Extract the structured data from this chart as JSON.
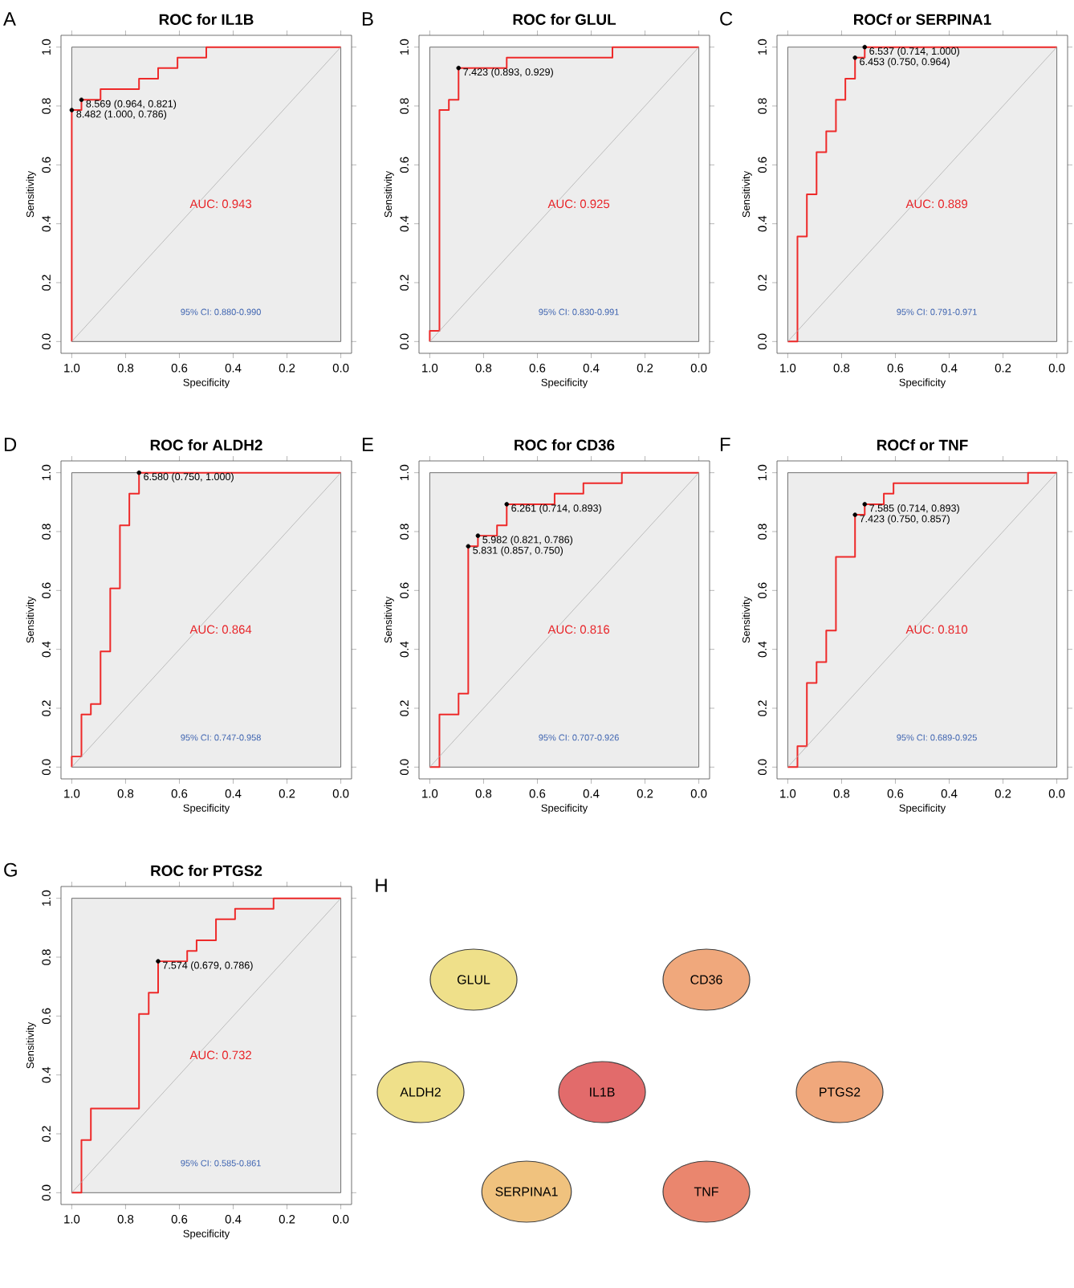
{
  "chart_data": [
    {
      "type": "line",
      "title": "ROC for IL1B",
      "xlabel": "Specificity",
      "ylabel": "Sensitivity",
      "xlim": [
        1.04,
        -0.04
      ],
      "ylim": [
        -0.04,
        1.04
      ],
      "xticks": [
        {
          "value": 1,
          "label": "1.0"
        },
        {
          "value": 0.8,
          "label": "0.8"
        },
        {
          "value": 0.6,
          "label": "0.6"
        },
        {
          "value": 0.4,
          "label": "0.4"
        },
        {
          "value": 0.2,
          "label": "0.2"
        },
        {
          "value": 0,
          "label": "0.0"
        }
      ],
      "yticks": [
        {
          "value": 0,
          "label": "0.0"
        },
        {
          "value": 0.2,
          "label": "0.2"
        },
        {
          "value": 0.4,
          "label": "0.4"
        },
        {
          "value": 0.6,
          "label": "0.6"
        },
        {
          "value": 0.8,
          "label": "0.8"
        },
        {
          "value": 1,
          "label": "1.0"
        }
      ],
      "series": [
        {
          "color": "#ee2a2a",
          "x": [
            1,
            1,
            0.964,
            0.964,
            0.893,
            0.893,
            0.75,
            0.75,
            0.679,
            0.679,
            0.607,
            0.607,
            0.5,
            0.5,
            0
          ],
          "values": [
            0,
            0.786,
            0.786,
            0.821,
            0.821,
            0.857,
            0.857,
            0.893,
            0.893,
            0.929,
            0.929,
            0.964,
            0.964,
            1,
            1
          ]
        },
        {
          "color": "#b0b0b0",
          "x": [
            1,
            0
          ],
          "values": [
            0,
            1
          ]
        },
        {
          "type": "scatter",
          "marker": "circle",
          "color": "#000000",
          "x": [
            1,
            0.964
          ],
          "values": [
            0.786,
            0.821
          ]
        }
      ],
      "annotations": [
        "A",
        "AUC: 0.943",
        "95% CI: 0.880-0.990",
        {
          "text": "8.569 (0.964, 0.821)",
          "x": 0.964,
          "y": 0.821
        },
        {
          "text": "8.482 (1.000, 0.786)",
          "x": 1,
          "y": 0.786
        }
      ]
    },
    {
      "type": "line",
      "title": "ROC for GLUL",
      "xlabel": "Specificity",
      "ylabel": "Sensitivity",
      "xlim": [
        1.04,
        -0.04
      ],
      "ylim": [
        -0.04,
        1.04
      ],
      "xticks": [
        {
          "value": 1,
          "label": "1.0"
        },
        {
          "value": 0.8,
          "label": "0.8"
        },
        {
          "value": 0.6,
          "label": "0.6"
        },
        {
          "value": 0.4,
          "label": "0.4"
        },
        {
          "value": 0.2,
          "label": "0.2"
        },
        {
          "value": 0,
          "label": "0.0"
        }
      ],
      "yticks": [
        {
          "value": 0,
          "label": "0.0"
        },
        {
          "value": 0.2,
          "label": "0.2"
        },
        {
          "value": 0.4,
          "label": "0.4"
        },
        {
          "value": 0.6,
          "label": "0.6"
        },
        {
          "value": 0.8,
          "label": "0.8"
        },
        {
          "value": 1,
          "label": "1.0"
        }
      ],
      "series": [
        {
          "color": "#ee2a2a",
          "x": [
            1,
            1,
            0.964,
            0.964,
            0.929,
            0.929,
            0.893,
            0.893,
            0.714,
            0.714,
            0.321,
            0.321,
            0
          ],
          "values": [
            0,
            0.036,
            0.036,
            0.786,
            0.786,
            0.821,
            0.821,
            0.929,
            0.929,
            0.964,
            0.964,
            1,
            1
          ]
        },
        {
          "color": "#b0b0b0",
          "x": [
            1,
            0
          ],
          "values": [
            0,
            1
          ]
        },
        {
          "type": "scatter",
          "marker": "circle",
          "color": "#000000",
          "x": [
            0.893
          ],
          "values": [
            0.929
          ]
        }
      ],
      "annotations": [
        "B",
        "AUC: 0.925",
        "95% CI: 0.830-0.991",
        {
          "text": "7.423 (0.893, 0.929)",
          "x": 0.893,
          "y": 0.929
        }
      ]
    },
    {
      "type": "line",
      "title": "ROCf or SERPINA1",
      "xlabel": "Specificity",
      "ylabel": "Sensitivity",
      "xlim": [
        1.04,
        -0.04
      ],
      "ylim": [
        -0.04,
        1.04
      ],
      "xticks": [
        {
          "value": 1,
          "label": "1.0"
        },
        {
          "value": 0.8,
          "label": "0.8"
        },
        {
          "value": 0.6,
          "label": "0.6"
        },
        {
          "value": 0.4,
          "label": "0.4"
        },
        {
          "value": 0.2,
          "label": "0.2"
        },
        {
          "value": 0,
          "label": "0.0"
        }
      ],
      "yticks": [
        {
          "value": 0,
          "label": "0.0"
        },
        {
          "value": 0.2,
          "label": "0.2"
        },
        {
          "value": 0.4,
          "label": "0.4"
        },
        {
          "value": 0.6,
          "label": "0.6"
        },
        {
          "value": 0.8,
          "label": "0.8"
        },
        {
          "value": 1,
          "label": "1.0"
        }
      ],
      "series": [
        {
          "color": "#ee2a2a",
          "x": [
            1,
            0.964,
            0.964,
            0.929,
            0.929,
            0.893,
            0.893,
            0.857,
            0.857,
            0.821,
            0.821,
            0.786,
            0.786,
            0.75,
            0.75,
            0.714,
            0.714,
            0
          ],
          "values": [
            0,
            0,
            0.357,
            0.357,
            0.5,
            0.5,
            0.643,
            0.643,
            0.714,
            0.714,
            0.821,
            0.821,
            0.893,
            0.893,
            0.964,
            0.964,
            1,
            1
          ]
        },
        {
          "color": "#b0b0b0",
          "x": [
            1,
            0
          ],
          "values": [
            0,
            1
          ]
        },
        {
          "type": "scatter",
          "marker": "circle",
          "color": "#000000",
          "x": [
            0.714,
            0.75
          ],
          "values": [
            1,
            0.964
          ]
        }
      ],
      "annotations": [
        "C",
        "AUC: 0.889",
        "95% CI: 0.791-0.971",
        {
          "text": "6.537 (0.714, 1.000)",
          "x": 0.714,
          "y": 1
        },
        {
          "text": "6.453 (0.750, 0.964)",
          "x": 0.75,
          "y": 0.964
        }
      ]
    },
    {
      "type": "line",
      "title": "ROC for ALDH2",
      "xlabel": "Specificity",
      "ylabel": "Sensitivity",
      "xlim": [
        1.04,
        -0.04
      ],
      "ylim": [
        -0.04,
        1.04
      ],
      "xticks": [
        {
          "value": 1,
          "label": "1.0"
        },
        {
          "value": 0.8,
          "label": "0.8"
        },
        {
          "value": 0.6,
          "label": "0.6"
        },
        {
          "value": 0.4,
          "label": "0.4"
        },
        {
          "value": 0.2,
          "label": "0.2"
        },
        {
          "value": 0,
          "label": "0.0"
        }
      ],
      "yticks": [
        {
          "value": 0,
          "label": "0.0"
        },
        {
          "value": 0.2,
          "label": "0.2"
        },
        {
          "value": 0.4,
          "label": "0.4"
        },
        {
          "value": 0.6,
          "label": "0.6"
        },
        {
          "value": 0.8,
          "label": "0.8"
        },
        {
          "value": 1,
          "label": "1.0"
        }
      ],
      "series": [
        {
          "color": "#ee2a2a",
          "x": [
            1,
            1,
            0.964,
            0.964,
            0.929,
            0.929,
            0.893,
            0.893,
            0.857,
            0.857,
            0.821,
            0.821,
            0.786,
            0.786,
            0.75,
            0.75,
            0
          ],
          "values": [
            0,
            0.036,
            0.036,
            0.179,
            0.179,
            0.214,
            0.214,
            0.393,
            0.393,
            0.607,
            0.607,
            0.821,
            0.821,
            0.929,
            0.929,
            1,
            1
          ]
        },
        {
          "color": "#b0b0b0",
          "x": [
            1,
            0
          ],
          "values": [
            0,
            1
          ]
        },
        {
          "type": "scatter",
          "marker": "circle",
          "color": "#000000",
          "x": [
            0.75
          ],
          "values": [
            1
          ]
        }
      ],
      "annotations": [
        "D",
        "AUC: 0.864",
        "95% CI: 0.747-0.958",
        {
          "text": "6.580 (0.750, 1.000)",
          "x": 0.75,
          "y": 1
        }
      ]
    },
    {
      "type": "line",
      "title": "ROC for CD36",
      "xlabel": "Specificity",
      "ylabel": "Sensitivity",
      "xlim": [
        1.04,
        -0.04
      ],
      "ylim": [
        -0.04,
        1.04
      ],
      "xticks": [
        {
          "value": 1,
          "label": "1.0"
        },
        {
          "value": 0.8,
          "label": "0.8"
        },
        {
          "value": 0.6,
          "label": "0.6"
        },
        {
          "value": 0.4,
          "label": "0.4"
        },
        {
          "value": 0.2,
          "label": "0.2"
        },
        {
          "value": 0,
          "label": "0.0"
        }
      ],
      "yticks": [
        {
          "value": 0,
          "label": "0.0"
        },
        {
          "value": 0.2,
          "label": "0.2"
        },
        {
          "value": 0.4,
          "label": "0.4"
        },
        {
          "value": 0.6,
          "label": "0.6"
        },
        {
          "value": 0.8,
          "label": "0.8"
        },
        {
          "value": 1,
          "label": "1.0"
        }
      ],
      "series": [
        {
          "color": "#ee2a2a",
          "x": [
            1,
            0.964,
            0.964,
            0.893,
            0.893,
            0.857,
            0.857,
            0.821,
            0.821,
            0.75,
            0.75,
            0.714,
            0.714,
            0.536,
            0.536,
            0.429,
            0.429,
            0.286,
            0.286,
            0
          ],
          "values": [
            0,
            0,
            0.179,
            0.179,
            0.25,
            0.25,
            0.75,
            0.75,
            0.786,
            0.786,
            0.821,
            0.821,
            0.893,
            0.893,
            0.929,
            0.929,
            0.964,
            0.964,
            1,
            1
          ]
        },
        {
          "color": "#b0b0b0",
          "x": [
            1,
            0
          ],
          "values": [
            0,
            1
          ]
        },
        {
          "type": "scatter",
          "marker": "circle",
          "color": "#000000",
          "x": [
            0.714,
            0.821,
            0.857
          ],
          "values": [
            0.893,
            0.786,
            0.75
          ]
        }
      ],
      "annotations": [
        "E",
        "AUC: 0.816",
        "95% CI: 0.707-0.926",
        {
          "text": "6.261 (0.714, 0.893)",
          "x": 0.714,
          "y": 0.893
        },
        {
          "text": "5.982 (0.821, 0.786)",
          "x": 0.821,
          "y": 0.786
        },
        {
          "text": "5.831 (0.857, 0.750)",
          "x": 0.857,
          "y": 0.75
        }
      ]
    },
    {
      "type": "line",
      "title": "ROCf or TNF",
      "xlabel": "Specificity",
      "ylabel": "Sensitivity",
      "xlim": [
        1.04,
        -0.04
      ],
      "ylim": [
        -0.04,
        1.04
      ],
      "xticks": [
        {
          "value": 1,
          "label": "1.0"
        },
        {
          "value": 0.8,
          "label": "0.8"
        },
        {
          "value": 0.6,
          "label": "0.6"
        },
        {
          "value": 0.4,
          "label": "0.4"
        },
        {
          "value": 0.2,
          "label": "0.2"
        },
        {
          "value": 0,
          "label": "0.0"
        }
      ],
      "yticks": [
        {
          "value": 0,
          "label": "0.0"
        },
        {
          "value": 0.2,
          "label": "0.2"
        },
        {
          "value": 0.4,
          "label": "0.4"
        },
        {
          "value": 0.6,
          "label": "0.6"
        },
        {
          "value": 0.8,
          "label": "0.8"
        },
        {
          "value": 1,
          "label": "1.0"
        }
      ],
      "series": [
        {
          "color": "#ee2a2a",
          "x": [
            1,
            0.964,
            0.964,
            0.929,
            0.929,
            0.893,
            0.893,
            0.857,
            0.857,
            0.821,
            0.821,
            0.75,
            0.75,
            0.714,
            0.714,
            0.643,
            0.643,
            0.607,
            0.607,
            0.107,
            0.107,
            0
          ],
          "values": [
            0,
            0,
            0.071,
            0.071,
            0.286,
            0.286,
            0.357,
            0.357,
            0.464,
            0.464,
            0.714,
            0.714,
            0.857,
            0.857,
            0.893,
            0.893,
            0.929,
            0.929,
            0.964,
            0.964,
            1,
            1
          ]
        },
        {
          "color": "#b0b0b0",
          "x": [
            1,
            0
          ],
          "values": [
            0,
            1
          ]
        },
        {
          "type": "scatter",
          "marker": "circle",
          "color": "#000000",
          "x": [
            0.714,
            0.75
          ],
          "values": [
            0.893,
            0.857
          ]
        }
      ],
      "annotations": [
        "F",
        "AUC: 0.810",
        "95% CI: 0.689-0.925",
        {
          "text": "7.585 (0.714, 0.893)",
          "x": 0.714,
          "y": 0.893
        },
        {
          "text": "7.423 (0.750, 0.857)",
          "x": 0.75,
          "y": 0.857
        }
      ]
    },
    {
      "type": "line",
      "title": "ROC for PTGS2",
      "xlabel": "Specificity",
      "ylabel": "Sensitivity",
      "xlim": [
        1.04,
        -0.04
      ],
      "ylim": [
        -0.04,
        1.04
      ],
      "xticks": [
        {
          "value": 1,
          "label": "1.0"
        },
        {
          "value": 0.8,
          "label": "0.8"
        },
        {
          "value": 0.6,
          "label": "0.6"
        },
        {
          "value": 0.4,
          "label": "0.4"
        },
        {
          "value": 0.2,
          "label": "0.2"
        },
        {
          "value": 0,
          "label": "0.0"
        }
      ],
      "yticks": [
        {
          "value": 0,
          "label": "0.0"
        },
        {
          "value": 0.2,
          "label": "0.2"
        },
        {
          "value": 0.4,
          "label": "0.4"
        },
        {
          "value": 0.6,
          "label": "0.6"
        },
        {
          "value": 0.8,
          "label": "0.8"
        },
        {
          "value": 1,
          "label": "1.0"
        }
      ],
      "series": [
        {
          "color": "#ee2a2a",
          "x": [
            1,
            0.964,
            0.964,
            0.929,
            0.929,
            0.75,
            0.75,
            0.714,
            0.714,
            0.679,
            0.679,
            0.571,
            0.571,
            0.536,
            0.536,
            0.464,
            0.464,
            0.393,
            0.393,
            0.25,
            0.25,
            0
          ],
          "values": [
            0,
            0,
            0.179,
            0.179,
            0.286,
            0.286,
            0.607,
            0.607,
            0.679,
            0.679,
            0.786,
            0.786,
            0.821,
            0.821,
            0.857,
            0.857,
            0.929,
            0.929,
            0.964,
            0.964,
            1,
            1
          ]
        },
        {
          "color": "#b0b0b0",
          "x": [
            1,
            0
          ],
          "values": [
            0,
            1
          ]
        },
        {
          "type": "scatter",
          "marker": "circle",
          "color": "#000000",
          "x": [
            0.679
          ],
          "values": [
            0.786
          ]
        }
      ],
      "annotations": [
        "G",
        "AUC: 0.732",
        "95% CI: 0.585-0.861",
        {
          "text": "7.574 (0.679, 0.786)",
          "x": 0.679,
          "y": 0.786
        }
      ]
    },
    {
      "type": "other",
      "categories": [
        "GLUL",
        "CD36",
        "ALDH2",
        "IL1B",
        "PTGS2",
        "SERPINA1",
        "TNF"
      ],
      "colors": [
        "#efe08a",
        "#f0a87c",
        "#efe08a",
        "#e26b6b",
        "#f0a87c",
        "#f0c27e",
        "#ea866e"
      ],
      "annotations": [
        "H"
      ]
    }
  ]
}
